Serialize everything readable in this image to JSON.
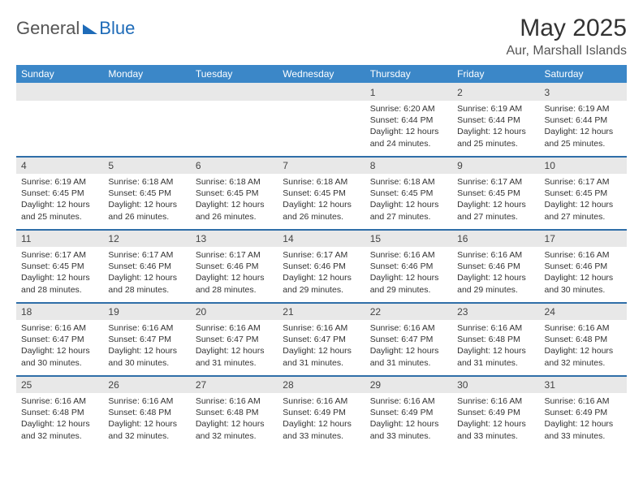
{
  "branding": {
    "name1": "General",
    "name2": "Blue"
  },
  "title": "May 2025",
  "location": "Aur, Marshall Islands",
  "colors": {
    "header_bg": "#3b87c8",
    "header_text": "#ffffff",
    "week_border": "#2f6ea8",
    "daynum_bg": "#e8e8e8",
    "text": "#333333",
    "brand_accent": "#1e6bb8"
  },
  "typography": {
    "title_fontsize": 30,
    "subtitle_fontsize": 16,
    "header_fontsize": 12,
    "daynum_fontsize": 12,
    "body_fontsize": 10.5
  },
  "weekdays": [
    "Sunday",
    "Monday",
    "Tuesday",
    "Wednesday",
    "Thursday",
    "Friday",
    "Saturday"
  ],
  "weeks": [
    [
      {
        "n": "",
        "lines": []
      },
      {
        "n": "",
        "lines": []
      },
      {
        "n": "",
        "lines": []
      },
      {
        "n": "",
        "lines": []
      },
      {
        "n": "1",
        "lines": [
          "Sunrise: 6:20 AM",
          "Sunset: 6:44 PM",
          "Daylight: 12 hours",
          "and 24 minutes."
        ]
      },
      {
        "n": "2",
        "lines": [
          "Sunrise: 6:19 AM",
          "Sunset: 6:44 PM",
          "Daylight: 12 hours",
          "and 25 minutes."
        ]
      },
      {
        "n": "3",
        "lines": [
          "Sunrise: 6:19 AM",
          "Sunset: 6:44 PM",
          "Daylight: 12 hours",
          "and 25 minutes."
        ]
      }
    ],
    [
      {
        "n": "4",
        "lines": [
          "Sunrise: 6:19 AM",
          "Sunset: 6:45 PM",
          "Daylight: 12 hours",
          "and 25 minutes."
        ]
      },
      {
        "n": "5",
        "lines": [
          "Sunrise: 6:18 AM",
          "Sunset: 6:45 PM",
          "Daylight: 12 hours",
          "and 26 minutes."
        ]
      },
      {
        "n": "6",
        "lines": [
          "Sunrise: 6:18 AM",
          "Sunset: 6:45 PM",
          "Daylight: 12 hours",
          "and 26 minutes."
        ]
      },
      {
        "n": "7",
        "lines": [
          "Sunrise: 6:18 AM",
          "Sunset: 6:45 PM",
          "Daylight: 12 hours",
          "and 26 minutes."
        ]
      },
      {
        "n": "8",
        "lines": [
          "Sunrise: 6:18 AM",
          "Sunset: 6:45 PM",
          "Daylight: 12 hours",
          "and 27 minutes."
        ]
      },
      {
        "n": "9",
        "lines": [
          "Sunrise: 6:17 AM",
          "Sunset: 6:45 PM",
          "Daylight: 12 hours",
          "and 27 minutes."
        ]
      },
      {
        "n": "10",
        "lines": [
          "Sunrise: 6:17 AM",
          "Sunset: 6:45 PM",
          "Daylight: 12 hours",
          "and 27 minutes."
        ]
      }
    ],
    [
      {
        "n": "11",
        "lines": [
          "Sunrise: 6:17 AM",
          "Sunset: 6:45 PM",
          "Daylight: 12 hours",
          "and 28 minutes."
        ]
      },
      {
        "n": "12",
        "lines": [
          "Sunrise: 6:17 AM",
          "Sunset: 6:46 PM",
          "Daylight: 12 hours",
          "and 28 minutes."
        ]
      },
      {
        "n": "13",
        "lines": [
          "Sunrise: 6:17 AM",
          "Sunset: 6:46 PM",
          "Daylight: 12 hours",
          "and 28 minutes."
        ]
      },
      {
        "n": "14",
        "lines": [
          "Sunrise: 6:17 AM",
          "Sunset: 6:46 PM",
          "Daylight: 12 hours",
          "and 29 minutes."
        ]
      },
      {
        "n": "15",
        "lines": [
          "Sunrise: 6:16 AM",
          "Sunset: 6:46 PM",
          "Daylight: 12 hours",
          "and 29 minutes."
        ]
      },
      {
        "n": "16",
        "lines": [
          "Sunrise: 6:16 AM",
          "Sunset: 6:46 PM",
          "Daylight: 12 hours",
          "and 29 minutes."
        ]
      },
      {
        "n": "17",
        "lines": [
          "Sunrise: 6:16 AM",
          "Sunset: 6:46 PM",
          "Daylight: 12 hours",
          "and 30 minutes."
        ]
      }
    ],
    [
      {
        "n": "18",
        "lines": [
          "Sunrise: 6:16 AM",
          "Sunset: 6:47 PM",
          "Daylight: 12 hours",
          "and 30 minutes."
        ]
      },
      {
        "n": "19",
        "lines": [
          "Sunrise: 6:16 AM",
          "Sunset: 6:47 PM",
          "Daylight: 12 hours",
          "and 30 minutes."
        ]
      },
      {
        "n": "20",
        "lines": [
          "Sunrise: 6:16 AM",
          "Sunset: 6:47 PM",
          "Daylight: 12 hours",
          "and 31 minutes."
        ]
      },
      {
        "n": "21",
        "lines": [
          "Sunrise: 6:16 AM",
          "Sunset: 6:47 PM",
          "Daylight: 12 hours",
          "and 31 minutes."
        ]
      },
      {
        "n": "22",
        "lines": [
          "Sunrise: 6:16 AM",
          "Sunset: 6:47 PM",
          "Daylight: 12 hours",
          "and 31 minutes."
        ]
      },
      {
        "n": "23",
        "lines": [
          "Sunrise: 6:16 AM",
          "Sunset: 6:48 PM",
          "Daylight: 12 hours",
          "and 31 minutes."
        ]
      },
      {
        "n": "24",
        "lines": [
          "Sunrise: 6:16 AM",
          "Sunset: 6:48 PM",
          "Daylight: 12 hours",
          "and 32 minutes."
        ]
      }
    ],
    [
      {
        "n": "25",
        "lines": [
          "Sunrise: 6:16 AM",
          "Sunset: 6:48 PM",
          "Daylight: 12 hours",
          "and 32 minutes."
        ]
      },
      {
        "n": "26",
        "lines": [
          "Sunrise: 6:16 AM",
          "Sunset: 6:48 PM",
          "Daylight: 12 hours",
          "and 32 minutes."
        ]
      },
      {
        "n": "27",
        "lines": [
          "Sunrise: 6:16 AM",
          "Sunset: 6:48 PM",
          "Daylight: 12 hours",
          "and 32 minutes."
        ]
      },
      {
        "n": "28",
        "lines": [
          "Sunrise: 6:16 AM",
          "Sunset: 6:49 PM",
          "Daylight: 12 hours",
          "and 33 minutes."
        ]
      },
      {
        "n": "29",
        "lines": [
          "Sunrise: 6:16 AM",
          "Sunset: 6:49 PM",
          "Daylight: 12 hours",
          "and 33 minutes."
        ]
      },
      {
        "n": "30",
        "lines": [
          "Sunrise: 6:16 AM",
          "Sunset: 6:49 PM",
          "Daylight: 12 hours",
          "and 33 minutes."
        ]
      },
      {
        "n": "31",
        "lines": [
          "Sunrise: 6:16 AM",
          "Sunset: 6:49 PM",
          "Daylight: 12 hours",
          "and 33 minutes."
        ]
      }
    ]
  ]
}
